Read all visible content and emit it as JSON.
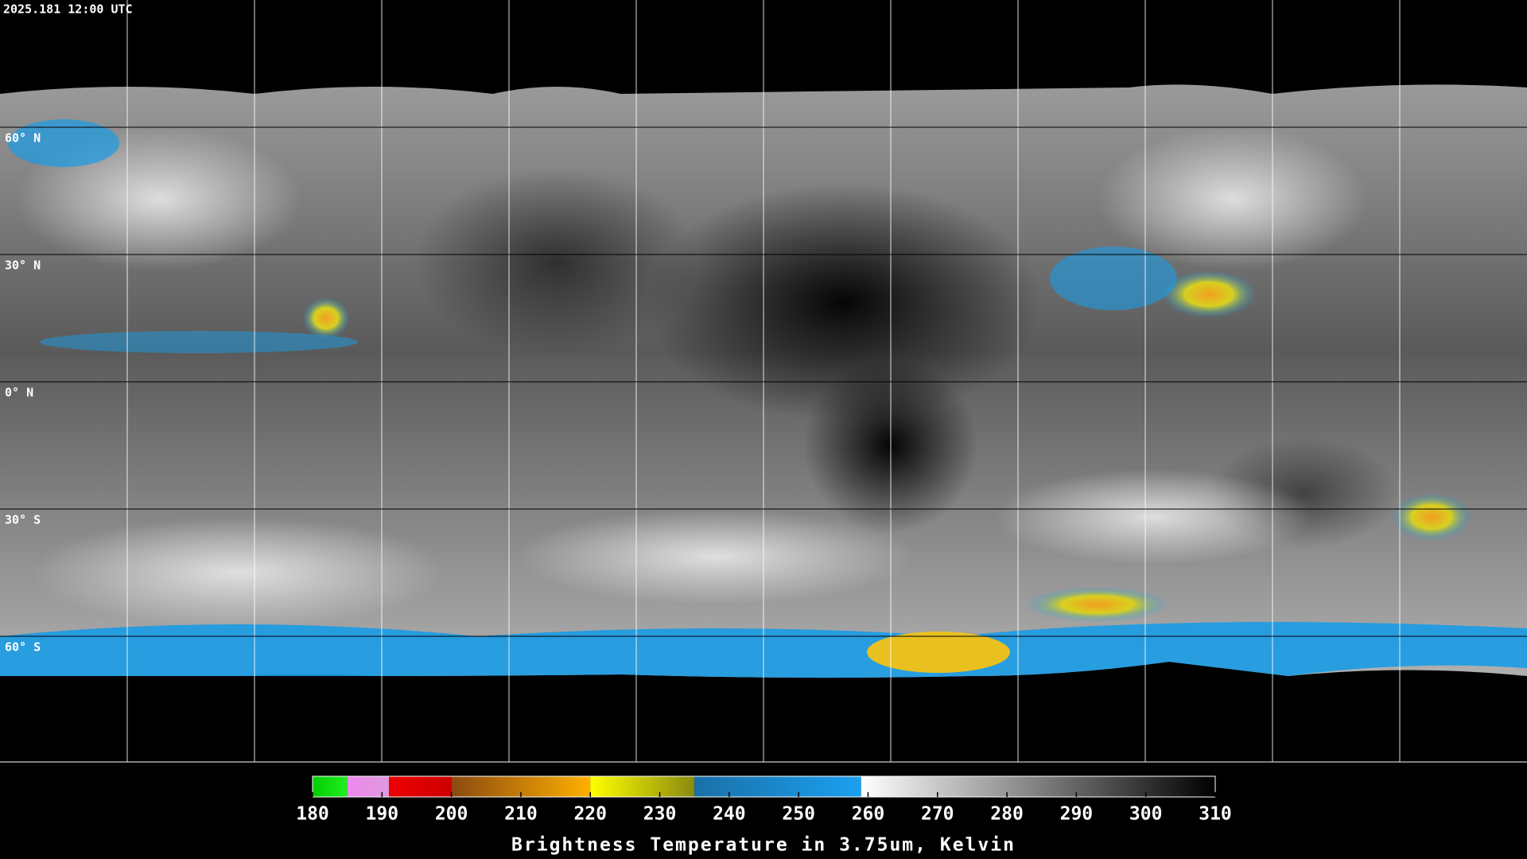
{
  "timestamp": "2025.181 12:00 UTC",
  "latitude_labels": [
    "60° N",
    "30° N",
    "0° N",
    "30° S",
    "60° S"
  ],
  "colorbar": {
    "label": "Brightness Temperature in 3.75um, Kelvin",
    "range": [
      180,
      310
    ],
    "ticks": [
      180,
      190,
      200,
      210,
      220,
      230,
      240,
      250,
      260,
      270,
      280,
      290,
      300,
      310
    ],
    "segments": [
      {
        "from": 180,
        "to": 185,
        "colors": [
          "#00cc00",
          "#22ee22"
        ]
      },
      {
        "from": 185,
        "to": 191,
        "colors": [
          "#ee88ee",
          "#dd99dd"
        ]
      },
      {
        "from": 191,
        "to": 200,
        "colors": [
          "#ee0000",
          "#cc0000"
        ]
      },
      {
        "from": 200,
        "to": 220,
        "colors": [
          "#8a4a10",
          "#ffb000"
        ]
      },
      {
        "from": 220,
        "to": 235,
        "colors": [
          "#ffff00",
          "#8a8a10"
        ]
      },
      {
        "from": 235,
        "to": 259,
        "colors": [
          "#1a70a8",
          "#1aa0f0"
        ]
      },
      {
        "from": 259,
        "to": 310,
        "colors": [
          "#ffffff",
          "#000000"
        ]
      }
    ]
  }
}
